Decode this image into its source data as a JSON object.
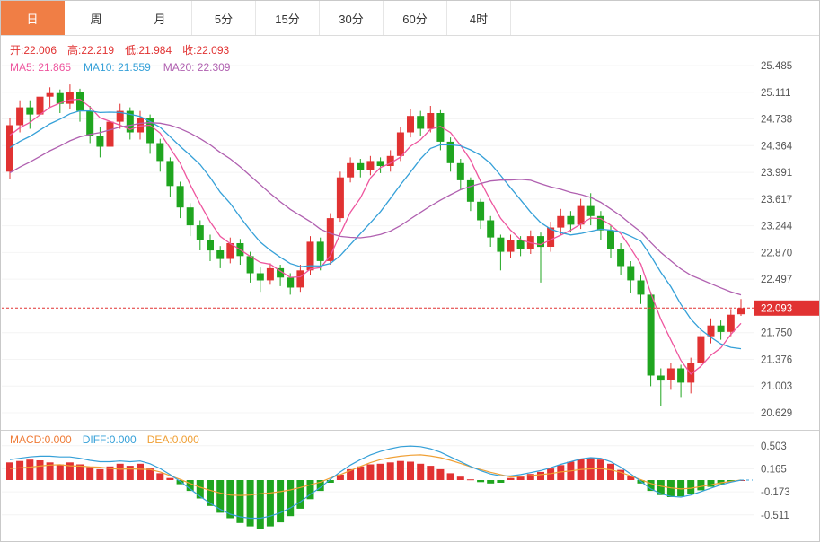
{
  "tabs": [
    {
      "label": "日",
      "active": true
    },
    {
      "label": "周",
      "active": false
    },
    {
      "label": "月",
      "active": false
    },
    {
      "label": "5分",
      "active": false
    },
    {
      "label": "15分",
      "active": false
    },
    {
      "label": "30分",
      "active": false
    },
    {
      "label": "60分",
      "active": false
    },
    {
      "label": "4时",
      "active": false
    }
  ],
  "ohlc_header": {
    "items": [
      "开:22.006",
      "高:22.219",
      "低:21.984",
      "收:22.093"
    ]
  },
  "ma_legend": {
    "ma5": "MA5: 21.865",
    "ma10": "MA10: 21.559",
    "ma20": "MA20: 22.309"
  },
  "macd_legend": {
    "macd": "MACD:0.000",
    "diff": "DIFF:0.000",
    "dea": "DEA:0.000"
  },
  "colors": {
    "up": "#e13232",
    "down": "#1fa51f",
    "ma5": "#ee559e",
    "ma10": "#35a0d8",
    "ma20": "#b060b0",
    "accent": "#f07e45",
    "diff": "#35a0d8",
    "dea": "#f0a035",
    "macd_label": "#ef7a35",
    "axis_text": "#555555"
  },
  "chart_data": [
    {
      "type": "candlestick",
      "title": "",
      "y_ticks": [
        "25.485",
        "25.111",
        "24.738",
        "24.364",
        "23.991",
        "23.617",
        "23.244",
        "22.870",
        "22.497",
        "21.750",
        "21.376",
        "21.003",
        "20.629"
      ],
      "current_price": "22.093",
      "ma_periods": [
        5,
        10,
        20
      ],
      "ohlc": [
        [
          24.0,
          24.75,
          23.9,
          24.65
        ],
        [
          24.65,
          25.0,
          24.55,
          24.9
        ],
        [
          24.9,
          25.0,
          24.6,
          24.8
        ],
        [
          24.8,
          25.12,
          24.72,
          25.05
        ],
        [
          25.05,
          25.18,
          24.9,
          25.1
        ],
        [
          25.1,
          25.15,
          24.82,
          24.95
        ],
        [
          24.95,
          25.22,
          24.88,
          25.12
        ],
        [
          25.12,
          25.16,
          24.7,
          24.85
        ],
        [
          24.85,
          24.92,
          24.4,
          24.5
        ],
        [
          24.5,
          24.62,
          24.2,
          24.35
        ],
        [
          24.35,
          24.8,
          24.3,
          24.7
        ],
        [
          24.7,
          24.95,
          24.6,
          24.85
        ],
        [
          24.85,
          24.9,
          24.45,
          24.55
        ],
        [
          24.55,
          24.85,
          24.45,
          24.75
        ],
        [
          24.75,
          24.8,
          24.25,
          24.4
        ],
        [
          24.4,
          24.46,
          24.0,
          24.15
        ],
        [
          24.15,
          24.2,
          23.65,
          23.8
        ],
        [
          23.8,
          23.86,
          23.35,
          23.5
        ],
        [
          23.5,
          23.56,
          23.1,
          23.25
        ],
        [
          23.25,
          23.32,
          22.9,
          23.05
        ],
        [
          23.05,
          23.12,
          22.75,
          22.9
        ],
        [
          22.9,
          22.96,
          22.65,
          22.78
        ],
        [
          22.78,
          23.08,
          22.72,
          23.0
        ],
        [
          23.0,
          23.06,
          22.7,
          22.82
        ],
        [
          22.82,
          22.88,
          22.45,
          22.58
        ],
        [
          22.58,
          22.66,
          22.32,
          22.48
        ],
        [
          22.48,
          22.72,
          22.42,
          22.65
        ],
        [
          22.65,
          22.7,
          22.4,
          22.52
        ],
        [
          22.52,
          22.58,
          22.28,
          22.38
        ],
        [
          22.38,
          22.7,
          22.32,
          22.62
        ],
        [
          22.62,
          23.1,
          22.55,
          23.02
        ],
        [
          23.02,
          23.08,
          22.62,
          22.75
        ],
        [
          22.75,
          23.42,
          22.7,
          23.35
        ],
        [
          23.35,
          24.0,
          23.3,
          23.92
        ],
        [
          23.92,
          24.2,
          23.85,
          24.12
        ],
        [
          24.12,
          24.18,
          23.92,
          24.02
        ],
        [
          24.02,
          24.22,
          23.95,
          24.15
        ],
        [
          24.15,
          24.2,
          23.98,
          24.08
        ],
        [
          24.08,
          24.3,
          24.0,
          24.22
        ],
        [
          24.22,
          24.62,
          24.15,
          24.55
        ],
        [
          24.55,
          24.88,
          24.48,
          24.78
        ],
        [
          24.78,
          24.85,
          24.5,
          24.6
        ],
        [
          24.6,
          24.92,
          24.55,
          24.82
        ],
        [
          24.82,
          24.86,
          24.3,
          24.42
        ],
        [
          24.42,
          24.48,
          24.0,
          24.12
        ],
        [
          24.12,
          24.18,
          23.75,
          23.88
        ],
        [
          23.88,
          23.92,
          23.45,
          23.58
        ],
        [
          23.58,
          23.62,
          23.2,
          23.32
        ],
        [
          23.32,
          23.38,
          22.95,
          23.08
        ],
        [
          23.08,
          23.12,
          22.62,
          22.88
        ],
        [
          22.88,
          23.12,
          22.8,
          23.05
        ],
        [
          23.05,
          23.1,
          22.82,
          22.92
        ],
        [
          22.92,
          23.18,
          22.85,
          23.1
        ],
        [
          23.1,
          23.15,
          22.45,
          22.95
        ],
        [
          22.95,
          23.3,
          22.88,
          23.22
        ],
        [
          23.22,
          23.48,
          23.12,
          23.38
        ],
        [
          23.38,
          23.45,
          23.15,
          23.26
        ],
        [
          23.26,
          23.62,
          23.2,
          23.52
        ],
        [
          23.52,
          23.7,
          23.25,
          23.38
        ],
        [
          23.38,
          23.45,
          23.05,
          23.18
        ],
        [
          23.18,
          23.25,
          22.8,
          22.92
        ],
        [
          22.92,
          23.0,
          22.55,
          22.68
        ],
        [
          22.68,
          22.75,
          22.3,
          22.48
        ],
        [
          22.48,
          22.55,
          22.15,
          22.28
        ],
        [
          22.28,
          22.32,
          21.0,
          21.15
        ],
        [
          21.15,
          21.25,
          20.72,
          21.08
        ],
        [
          21.08,
          21.32,
          20.95,
          21.25
        ],
        [
          21.25,
          21.3,
          20.85,
          21.05
        ],
        [
          21.05,
          21.4,
          20.9,
          21.32
        ],
        [
          21.32,
          21.78,
          21.25,
          21.7
        ],
        [
          21.7,
          21.95,
          21.6,
          21.85
        ],
        [
          21.85,
          21.92,
          21.65,
          21.76
        ],
        [
          21.76,
          22.08,
          21.7,
          22.0
        ],
        [
          22.006,
          22.219,
          21.984,
          22.093
        ]
      ]
    },
    {
      "type": "macd",
      "y_ticks": [
        "0.503",
        "0.165",
        "-0.173",
        "-0.511"
      ],
      "histogram": [
        0.26,
        0.28,
        0.3,
        0.29,
        0.26,
        0.23,
        0.26,
        0.23,
        0.19,
        0.16,
        0.2,
        0.24,
        0.21,
        0.24,
        0.17,
        0.1,
        0.03,
        -0.06,
        -0.16,
        -0.27,
        -0.38,
        -0.48,
        -0.56,
        -0.63,
        -0.68,
        -0.72,
        -0.68,
        -0.62,
        -0.53,
        -0.42,
        -0.28,
        -0.16,
        -0.04,
        0.08,
        0.16,
        0.2,
        0.23,
        0.24,
        0.26,
        0.28,
        0.27,
        0.24,
        0.21,
        0.16,
        0.1,
        0.05,
        0.01,
        -0.03,
        -0.05,
        -0.04,
        0.03,
        0.05,
        0.09,
        0.12,
        0.17,
        0.22,
        0.27,
        0.31,
        0.33,
        0.3,
        0.24,
        0.15,
        0.06,
        -0.05,
        -0.16,
        -0.22,
        -0.25,
        -0.24,
        -0.2,
        -0.15,
        -0.1,
        -0.06,
        -0.02,
        0.0
      ],
      "diff": [
        0.3,
        0.32,
        0.34,
        0.35,
        0.35,
        0.34,
        0.34,
        0.32,
        0.29,
        0.27,
        0.27,
        0.28,
        0.27,
        0.28,
        0.24,
        0.17,
        0.08,
        -0.02,
        -0.13,
        -0.24,
        -0.34,
        -0.43,
        -0.5,
        -0.54,
        -0.56,
        -0.56,
        -0.53,
        -0.48,
        -0.41,
        -0.32,
        -0.21,
        -0.11,
        0.01,
        0.12,
        0.22,
        0.3,
        0.37,
        0.42,
        0.46,
        0.49,
        0.5,
        0.49,
        0.46,
        0.41,
        0.34,
        0.27,
        0.2,
        0.14,
        0.09,
        0.06,
        0.06,
        0.08,
        0.11,
        0.14,
        0.18,
        0.23,
        0.27,
        0.31,
        0.33,
        0.32,
        0.27,
        0.19,
        0.09,
        -0.02,
        -0.13,
        -0.2,
        -0.24,
        -0.25,
        -0.22,
        -0.17,
        -0.12,
        -0.07,
        -0.03,
        0.0
      ],
      "dea": [
        0.17,
        0.18,
        0.19,
        0.205,
        0.22,
        0.225,
        0.21,
        0.205,
        0.195,
        0.19,
        0.17,
        0.16,
        0.165,
        0.16,
        0.155,
        0.12,
        0.065,
        0.01,
        -0.05,
        -0.105,
        -0.15,
        -0.19,
        -0.22,
        -0.225,
        -0.22,
        -0.2,
        -0.19,
        -0.17,
        -0.145,
        -0.11,
        -0.07,
        -0.03,
        0.03,
        0.08,
        0.14,
        0.2,
        0.255,
        0.3,
        0.33,
        0.35,
        0.365,
        0.37,
        0.355,
        0.33,
        0.29,
        0.245,
        0.195,
        0.155,
        0.115,
        0.08,
        0.045,
        0.055,
        0.065,
        0.08,
        0.095,
        0.12,
        0.135,
        0.155,
        0.165,
        0.17,
        0.15,
        0.115,
        0.06,
        0.005,
        -0.05,
        -0.09,
        -0.115,
        -0.13,
        -0.12,
        -0.095,
        -0.07,
        -0.04,
        -0.02,
        0.0
      ]
    }
  ]
}
